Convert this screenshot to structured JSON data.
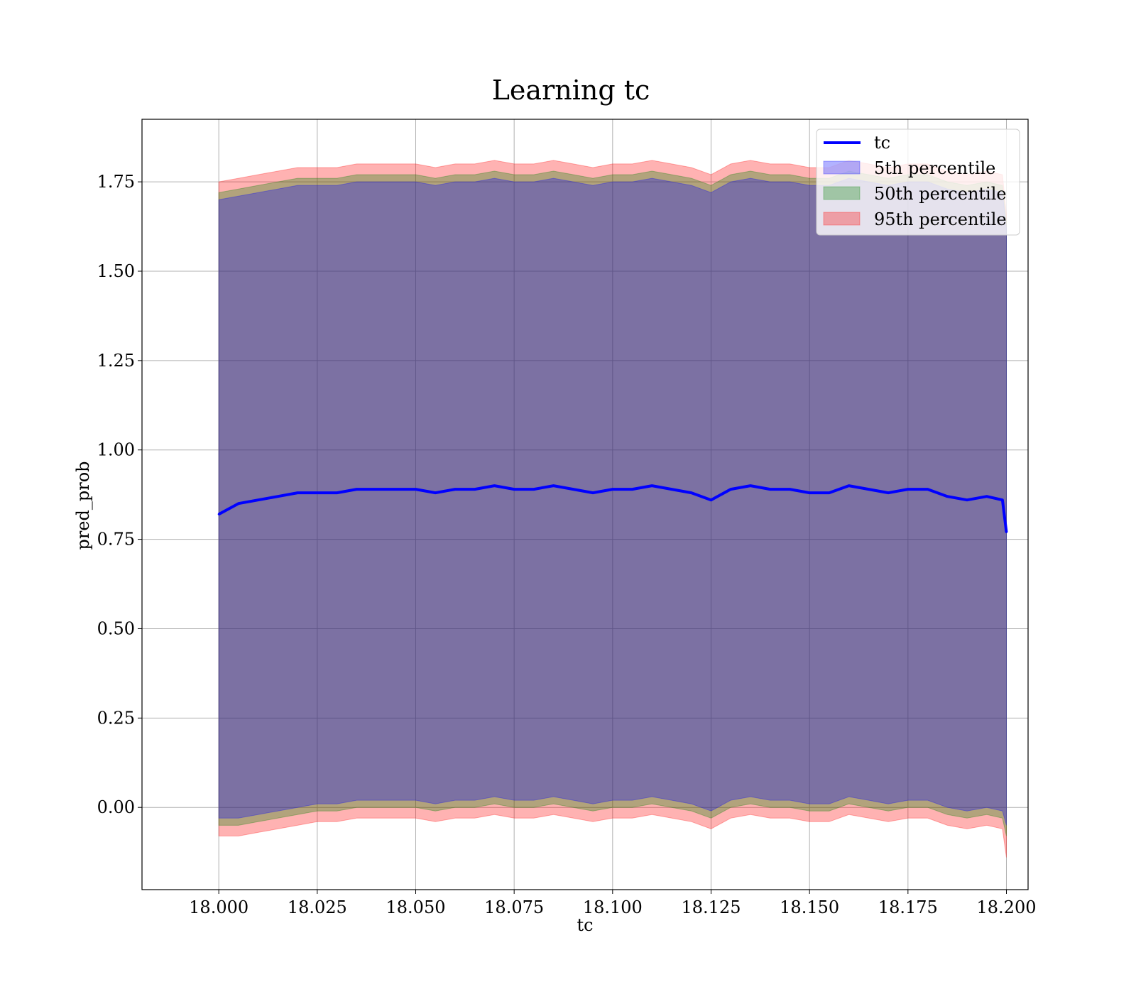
{
  "chart_data": {
    "type": "area",
    "title": "Learning tc",
    "xlabel": "tc",
    "ylabel": "pred_prob",
    "xlim": [
      17.9805,
      18.2055
    ],
    "ylim": [
      -0.23,
      1.925
    ],
    "xticks": [
      "18.000",
      "18.025",
      "18.050",
      "18.075",
      "18.100",
      "18.125",
      "18.150",
      "18.175",
      "18.200"
    ],
    "yticks": [
      "0.00",
      "0.25",
      "0.50",
      "0.75",
      "1.00",
      "1.25",
      "1.50",
      "1.75"
    ],
    "grid": true,
    "legend_position": "top-right",
    "legend": [
      {
        "label": "tc",
        "kind": "line",
        "color": "#0000ff"
      },
      {
        "label": "5th percentile",
        "kind": "band",
        "color": "#0000ff"
      },
      {
        "label": "50th percentile",
        "kind": "band",
        "color": "#008000"
      },
      {
        "label": "95th percentile",
        "kind": "band",
        "color": "#ff0000"
      }
    ],
    "x": [
      18.0,
      18.005,
      18.01,
      18.015,
      18.02,
      18.025,
      18.03,
      18.035,
      18.04,
      18.045,
      18.05,
      18.055,
      18.06,
      18.065,
      18.07,
      18.075,
      18.08,
      18.085,
      18.09,
      18.095,
      18.1,
      18.105,
      18.11,
      18.115,
      18.12,
      18.125,
      18.13,
      18.135,
      18.14,
      18.145,
      18.15,
      18.155,
      18.16,
      18.165,
      18.17,
      18.175,
      18.18,
      18.185,
      18.19,
      18.195,
      18.199,
      18.2
    ],
    "series": [
      {
        "name": "tc",
        "type": "line",
        "color": "#0000ff",
        "values": [
          0.82,
          0.85,
          0.86,
          0.87,
          0.88,
          0.88,
          0.88,
          0.89,
          0.89,
          0.89,
          0.89,
          0.88,
          0.89,
          0.89,
          0.9,
          0.89,
          0.89,
          0.9,
          0.89,
          0.88,
          0.89,
          0.89,
          0.9,
          0.89,
          0.88,
          0.86,
          0.89,
          0.9,
          0.89,
          0.89,
          0.88,
          0.88,
          0.9,
          0.89,
          0.88,
          0.89,
          0.89,
          0.87,
          0.86,
          0.87,
          0.86,
          0.77
        ]
      },
      {
        "name": "5th percentile",
        "type": "band",
        "color": "#0000ff",
        "lower": [
          -0.03,
          -0.03,
          -0.02,
          -0.01,
          0.0,
          0.01,
          0.01,
          0.02,
          0.02,
          0.02,
          0.02,
          0.01,
          0.02,
          0.02,
          0.03,
          0.02,
          0.02,
          0.03,
          0.02,
          0.01,
          0.02,
          0.02,
          0.03,
          0.02,
          0.01,
          -0.01,
          0.02,
          0.03,
          0.02,
          0.02,
          0.01,
          0.01,
          0.03,
          0.02,
          0.01,
          0.02,
          0.02,
          0.0,
          -0.01,
          0.0,
          -0.01,
          -0.05
        ],
        "upper": [
          1.7,
          1.71,
          1.72,
          1.73,
          1.74,
          1.74,
          1.74,
          1.75,
          1.75,
          1.75,
          1.75,
          1.74,
          1.75,
          1.75,
          1.76,
          1.75,
          1.75,
          1.76,
          1.75,
          1.74,
          1.75,
          1.75,
          1.76,
          1.75,
          1.74,
          1.72,
          1.75,
          1.76,
          1.75,
          1.75,
          1.74,
          1.74,
          1.76,
          1.75,
          1.74,
          1.75,
          1.75,
          1.73,
          1.72,
          1.73,
          1.72,
          1.62
        ]
      },
      {
        "name": "50th percentile",
        "type": "band",
        "color": "#008000",
        "lower": [
          -0.05,
          -0.05,
          -0.04,
          -0.03,
          -0.02,
          -0.01,
          -0.01,
          0.0,
          0.0,
          0.0,
          0.0,
          -0.01,
          0.0,
          0.0,
          0.01,
          0.0,
          0.0,
          0.01,
          0.0,
          -0.01,
          0.0,
          0.0,
          0.01,
          0.0,
          -0.01,
          -0.03,
          0.0,
          0.01,
          0.0,
          0.0,
          -0.01,
          -0.01,
          0.01,
          0.0,
          -0.01,
          0.0,
          0.0,
          -0.02,
          -0.03,
          -0.02,
          -0.03,
          -0.08
        ],
        "upper": [
          1.72,
          1.73,
          1.74,
          1.75,
          1.76,
          1.76,
          1.76,
          1.77,
          1.77,
          1.77,
          1.77,
          1.76,
          1.77,
          1.77,
          1.78,
          1.77,
          1.77,
          1.78,
          1.77,
          1.76,
          1.77,
          1.77,
          1.78,
          1.77,
          1.76,
          1.74,
          1.77,
          1.78,
          1.77,
          1.77,
          1.76,
          1.76,
          1.78,
          1.77,
          1.76,
          1.77,
          1.77,
          1.75,
          1.74,
          1.75,
          1.74,
          1.64
        ]
      },
      {
        "name": "95th percentile",
        "type": "band",
        "color": "#ff0000",
        "lower": [
          -0.08,
          -0.08,
          -0.07,
          -0.06,
          -0.05,
          -0.04,
          -0.04,
          -0.03,
          -0.03,
          -0.03,
          -0.03,
          -0.04,
          -0.03,
          -0.03,
          -0.02,
          -0.03,
          -0.03,
          -0.02,
          -0.03,
          -0.04,
          -0.03,
          -0.03,
          -0.02,
          -0.03,
          -0.04,
          -0.06,
          -0.03,
          -0.02,
          -0.03,
          -0.03,
          -0.04,
          -0.04,
          -0.02,
          -0.03,
          -0.04,
          -0.03,
          -0.03,
          -0.05,
          -0.06,
          -0.05,
          -0.06,
          -0.14
        ],
        "upper": [
          1.75,
          1.76,
          1.77,
          1.78,
          1.79,
          1.79,
          1.79,
          1.8,
          1.8,
          1.8,
          1.8,
          1.79,
          1.8,
          1.8,
          1.81,
          1.8,
          1.8,
          1.81,
          1.8,
          1.79,
          1.8,
          1.8,
          1.81,
          1.8,
          1.79,
          1.77,
          1.8,
          1.81,
          1.8,
          1.8,
          1.79,
          1.79,
          1.81,
          1.8,
          1.79,
          1.8,
          1.8,
          1.78,
          1.77,
          1.78,
          1.77,
          1.66
        ]
      }
    ]
  }
}
